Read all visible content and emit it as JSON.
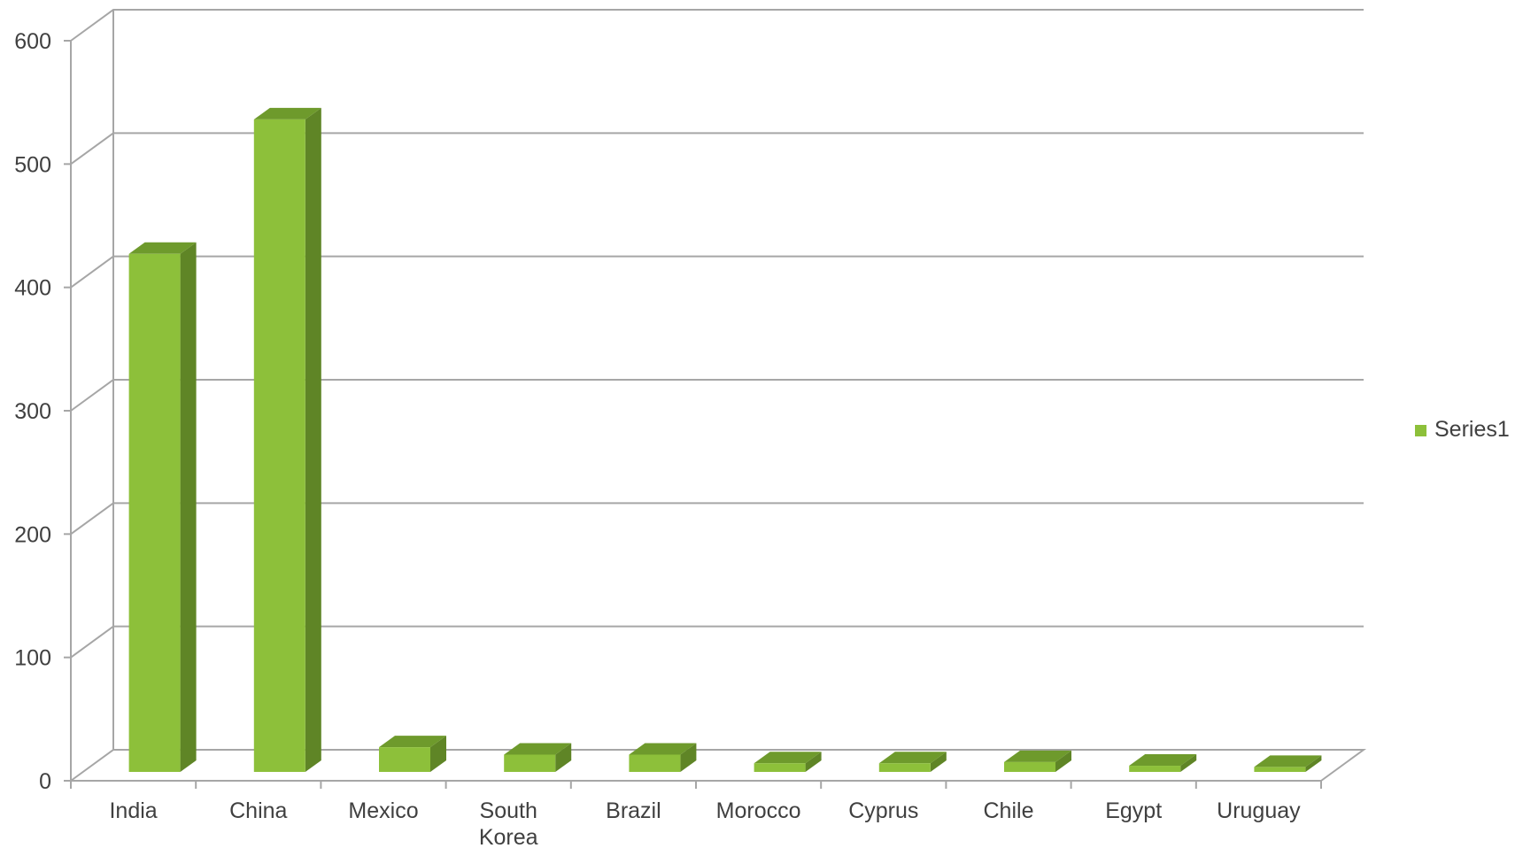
{
  "chart_data": {
    "type": "bar",
    "style": "3d-column",
    "categories": [
      "India",
      "China",
      "Mexico",
      "South Korea",
      "Brazil",
      "Morocco",
      "Cyprus",
      "Chile",
      "Egypt",
      "Uruguay"
    ],
    "series": [
      {
        "name": "Series1",
        "values": [
          420,
          529,
          20,
          14,
          14,
          7,
          7,
          8,
          5,
          4
        ]
      }
    ],
    "ylim": [
      0,
      600
    ],
    "yticks": [
      0,
      100,
      200,
      300,
      400,
      500,
      600
    ],
    "grid": true,
    "legend": "right",
    "colors": {
      "bar_front": "#8dc03a",
      "bar_side": "#5f8526",
      "bar_top": "#6e9a2c",
      "grid": "#a6a6a6",
      "text": "#404040"
    }
  }
}
